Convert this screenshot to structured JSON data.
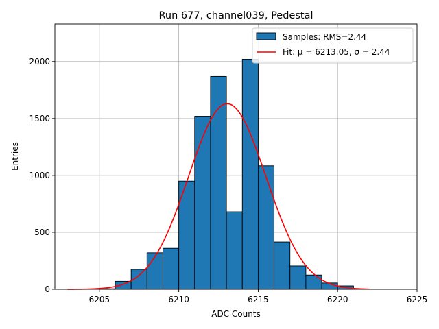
{
  "chart_data": {
    "type": "bar",
    "title": "Run 677, channel039, Pedestal",
    "xlabel": "ADC Counts",
    "ylabel": "Entries",
    "xlim": [
      6202.2,
      6225
    ],
    "ylim": [
      0,
      2330
    ],
    "xticks": [
      6205,
      6210,
      6215,
      6220,
      6225
    ],
    "yticks": [
      0,
      500,
      1000,
      1500,
      2000
    ],
    "grid": true,
    "bin_width": 1,
    "bins": [
      {
        "left": 6205,
        "value": 5
      },
      {
        "left": 6206,
        "value": 70
      },
      {
        "left": 6207,
        "value": 175
      },
      {
        "left": 6208,
        "value": 320
      },
      {
        "left": 6209,
        "value": 360
      },
      {
        "left": 6210,
        "value": 950
      },
      {
        "left": 6211,
        "value": 1520
      },
      {
        "left": 6212,
        "value": 1870
      },
      {
        "left": 6213,
        "value": 680
      },
      {
        "left": 6214,
        "value": 2020
      },
      {
        "left": 6215,
        "value": 1085
      },
      {
        "left": 6216,
        "value": 415
      },
      {
        "left": 6217,
        "value": 205
      },
      {
        "left": 6218,
        "value": 125
      },
      {
        "left": 6219,
        "value": 55
      },
      {
        "left": 6220,
        "value": 30
      }
    ],
    "fit": {
      "mu": 6213.05,
      "sigma": 2.44,
      "amplitude": 1630,
      "x_start": 6203,
      "x_end": 6222
    },
    "series": [
      {
        "name": "Samples: RMS=2.44",
        "kind": "histogram",
        "color": "#1f77b4"
      },
      {
        "name": "Fit: μ = 6213.05, σ = 2.44",
        "kind": "line",
        "color": "#ff0000"
      }
    ],
    "legend": {
      "position": "top-right",
      "entries": [
        "Samples: RMS=2.44",
        "Fit: μ = 6213.05, σ = 2.44"
      ]
    }
  },
  "colors": {
    "bar_fill": "#1f77b4",
    "bar_edge": "#000000",
    "fit_line": "#ff0000",
    "grid": "#b0b0b0"
  }
}
